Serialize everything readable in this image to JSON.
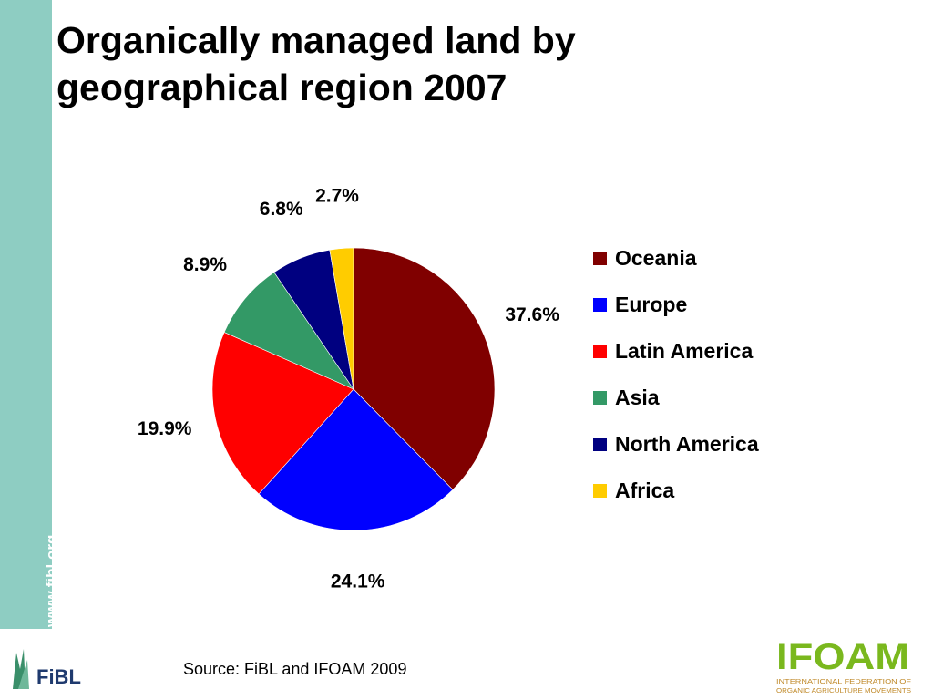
{
  "sidebar": {
    "url": "www.fibl.org"
  },
  "title": {
    "line1": "Organically managed land by",
    "line2": "geographical region 2007"
  },
  "source": "Source: FiBL and IFOAM  2009",
  "logos": {
    "left": "FiBL",
    "right": "IFOAM",
    "right_subtitle_1": "INTERNATIONAL FEDERATION OF",
    "right_subtitle_2": "ORGANIC AGRICULTURE MOVEMENTS"
  },
  "colors": {
    "sidebar": "#8ecdc2",
    "Oceania": "#800000",
    "Europe": "#0000ff",
    "Latin America": "#ff0000",
    "Asia": "#339966",
    "North America": "#000080",
    "Africa": "#ffcc00"
  },
  "chart_data": {
    "type": "pie",
    "categories": [
      "Oceania",
      "Europe",
      "Latin America",
      "Asia",
      "North America",
      "Africa"
    ],
    "values": [
      37.6,
      24.1,
      19.9,
      8.9,
      6.8,
      2.7
    ],
    "labels": [
      "37.6%",
      "24.1%",
      "19.9%",
      "8.9%",
      "6.8%",
      "2.7%"
    ],
    "start": "12 o'clock",
    "direction": "clockwise",
    "legend_position": "right"
  }
}
